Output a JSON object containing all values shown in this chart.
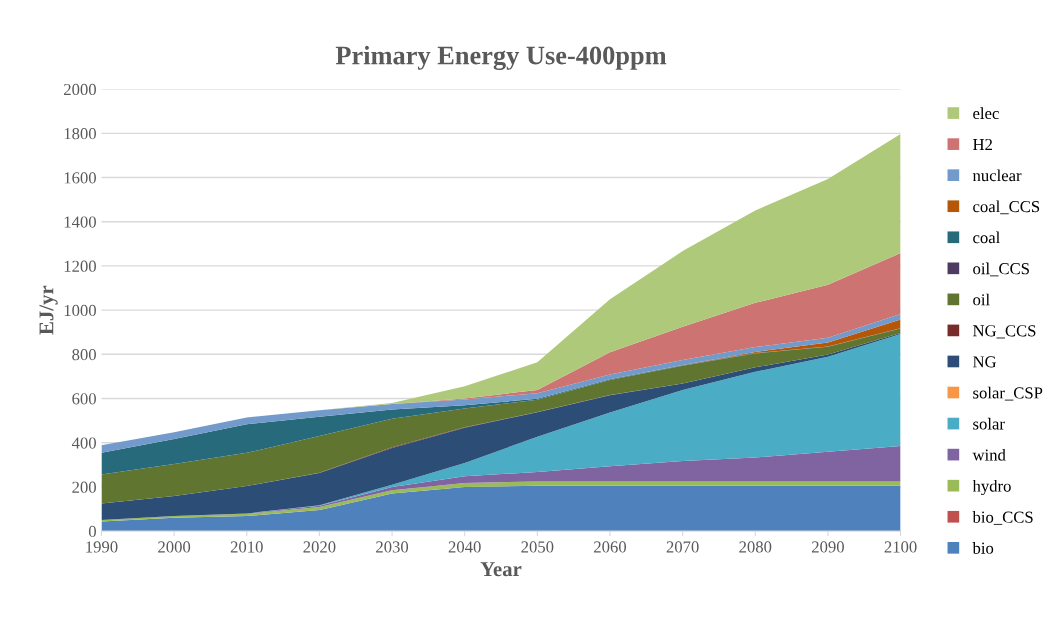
{
  "chart_data": {
    "type": "area",
    "stacked": true,
    "title": "Primary Energy Use-400ppm",
    "xlabel": "Year",
    "ylabel": "EJ/yr",
    "x": [
      1990,
      2000,
      2010,
      2020,
      2030,
      2040,
      2050,
      2060,
      2070,
      2080,
      2090,
      2100
    ],
    "xlim": [
      1990,
      2100
    ],
    "xticks": [
      1990,
      2000,
      2010,
      2020,
      2030,
      2040,
      2050,
      2060,
      2070,
      2080,
      2090,
      2100
    ],
    "ylim": [
      0,
      2000
    ],
    "yticks": [
      0,
      200,
      400,
      600,
      800,
      1000,
      1200,
      1400,
      1600,
      1800,
      2000
    ],
    "grid": "y",
    "legend": "right",
    "series": [
      {
        "name": "bio",
        "color": "#4f81bd",
        "values": [
          44,
          60,
          68,
          95,
          170,
          200,
          205,
          205,
          205,
          205,
          205,
          205
        ]
      },
      {
        "name": "bio_CCS",
        "color": "#c0504d",
        "values": [
          null,
          null,
          null,
          null,
          null,
          null,
          null,
          null,
          null,
          null,
          null,
          null
        ]
      },
      {
        "name": "hydro",
        "color": "#9bbb59",
        "values": [
          6,
          8,
          10,
          14,
          15,
          18,
          20,
          20,
          20,
          20,
          20,
          20
        ]
      },
      {
        "name": "wind",
        "color": "#8064a2",
        "values": [
          0,
          0,
          2,
          6,
          15,
          30,
          43,
          69,
          92,
          108,
          134,
          160
        ]
      },
      {
        "name": "solar",
        "color": "#4bacc6",
        "values": [
          0,
          0,
          0,
          2,
          10,
          60,
          159,
          243,
          321,
          388,
          430,
          507
        ]
      },
      {
        "name": "solar_CSP",
        "color": "#f79646",
        "values": [
          null,
          null,
          null,
          null,
          null,
          null,
          null,
          null,
          null,
          null,
          null,
          null
        ]
      },
      {
        "name": "NG",
        "color": "#2c4d75",
        "values": [
          75,
          91,
          124,
          146,
          166,
          160,
          111,
          78,
          30,
          20,
          10,
          5
        ]
      },
      {
        "name": "NG_CCS",
        "color": "#772c2a",
        "values": [
          0,
          0,
          0,
          1,
          3,
          2,
          1,
          1,
          0,
          0,
          0,
          0
        ]
      },
      {
        "name": "oil",
        "color": "#5f7530",
        "values": [
          131,
          145,
          150,
          166,
          129,
          85,
          55,
          68,
          80,
          63,
          35,
          20
        ]
      },
      {
        "name": "oil_CCS",
        "color": "#4d3b62",
        "values": [
          null,
          null,
          null,
          null,
          null,
          null,
          null,
          null,
          null,
          null,
          null,
          null
        ]
      },
      {
        "name": "coal",
        "color": "#276a7c",
        "values": [
          98,
          113,
          130,
          87,
          42,
          15,
          5,
          3,
          2,
          2,
          1,
          1
        ]
      },
      {
        "name": "coal_CCS",
        "color": "#b65708",
        "values": [
          0,
          0,
          0,
          0,
          0,
          0,
          0,
          0,
          2,
          5,
          18,
          40
        ]
      },
      {
        "name": "nuclear",
        "color": "#729aca",
        "values": [
          35,
          30,
          30,
          30,
          25,
          25,
          25,
          22,
          22,
          22,
          22,
          25
        ]
      },
      {
        "name": "H2",
        "color": "#cd7371",
        "values": [
          0,
          0,
          0,
          0,
          0,
          5,
          15,
          100,
          151,
          200,
          240,
          275
        ]
      },
      {
        "name": "elec",
        "color": "#afc97a",
        "values": [
          0,
          0,
          0,
          0,
          5,
          55,
          125,
          240,
          342,
          418,
          478,
          539
        ]
      }
    ]
  }
}
